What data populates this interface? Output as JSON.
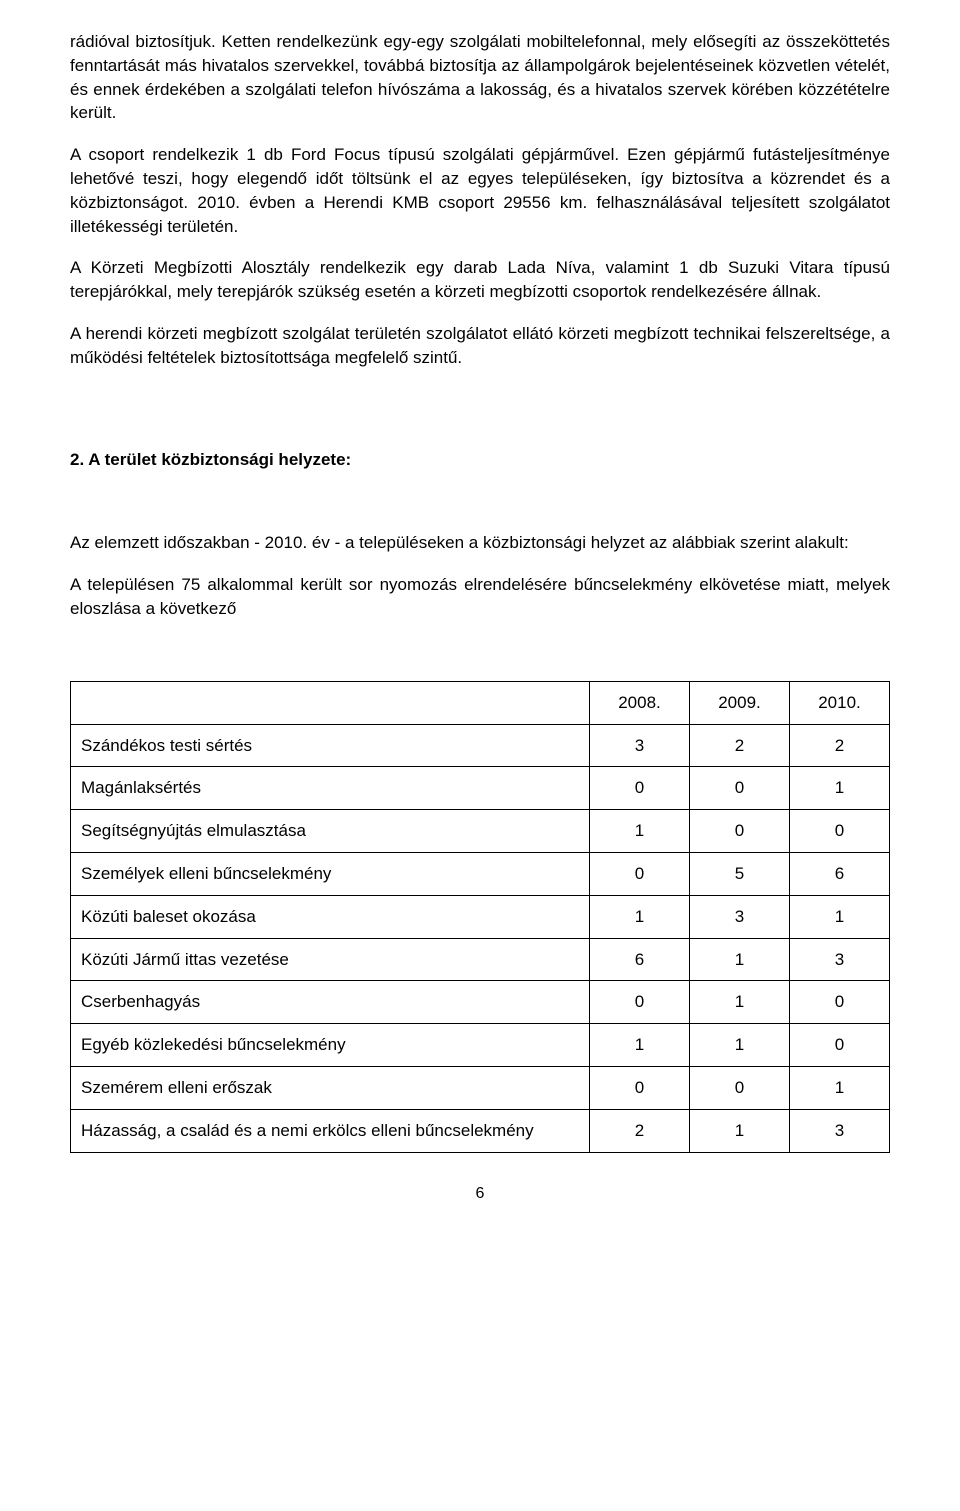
{
  "paragraphs": {
    "p1": "rádióval biztosítjuk. Ketten rendelkezünk egy-egy szolgálati mobiltelefonnal, mely elősegíti az összeköttetés fenntartását más hivatalos szervekkel, továbbá biztosítja az állampolgárok bejelentéseinek közvetlen vételét, és ennek érdekében a szolgálati telefon hívószáma a lakosság, és a hivatalos szervek körében közzétételre került.",
    "p2": "A csoport rendelkezik 1 db Ford Focus típusú szolgálati gépjárművel. Ezen gépjármű futásteljesítménye lehetővé teszi, hogy elegendő időt töltsünk el az egyes településeken, így biztosítva a közrendet és a közbiztonságot. 2010. évben a Herendi KMB csoport 29556 km. felhasználásával teljesített szolgálatot illetékességi területén.",
    "p3": "A Körzeti Megbízotti Alosztály rendelkezik egy darab Lada Níva, valamint 1 db Suzuki Vitara típusú terepjárókkal, mely terepjárók szükség esetén a körzeti megbízotti csoportok rendelkezésére állnak.",
    "p4": "A herendi körzeti megbízott szolgálat területén szolgálatot ellátó körzeti megbízott technikai felszereltsége, a működési feltételek biztosítottsága megfelelő szintű.",
    "heading": "2. A terület közbiztonsági helyzete:",
    "p5": "Az elemzett időszakban - 2010. év - a településeken a közbiztonsági helyzet az alábbiak szerint alakult:",
    "p6": "A településen 75 alkalommal került sor nyomozás elrendelésére bűncselekmény elkövetése miatt, melyek eloszlása a következő"
  },
  "table": {
    "columns": [
      "",
      "2008.",
      "2009.",
      "2010."
    ],
    "rows": [
      {
        "label": "Szándékos testi sértés",
        "c1": "3",
        "c2": "2",
        "c3": "2"
      },
      {
        "label": "Magánlaksértés",
        "c1": "0",
        "c2": "0",
        "c3": "1"
      },
      {
        "label": "Segítségnyújtás elmulasztása",
        "c1": "1",
        "c2": "0",
        "c3": "0"
      },
      {
        "label": "Személyek elleni bűncselekmény",
        "c1": "0",
        "c2": "5",
        "c3": "6"
      },
      {
        "label": "Közúti baleset okozása",
        "c1": "1",
        "c2": "3",
        "c3": "1"
      },
      {
        "label": "Közúti Jármű ittas vezetése",
        "c1": "6",
        "c2": "1",
        "c3": "3"
      },
      {
        "label": "Cserbenhagyás",
        "c1": "0",
        "c2": "1",
        "c3": "0"
      },
      {
        "label": "Egyéb közlekedési bűncselekmény",
        "c1": "1",
        "c2": "1",
        "c3": "0"
      },
      {
        "label": "Szemérem elleni erőszak",
        "c1": "0",
        "c2": "0",
        "c3": "1"
      },
      {
        "label": "Házasság, a család és a nemi erkölcs elleni bűncselekmény",
        "c1": "2",
        "c2": "1",
        "c3": "3"
      }
    ]
  },
  "pageNumber": "6"
}
